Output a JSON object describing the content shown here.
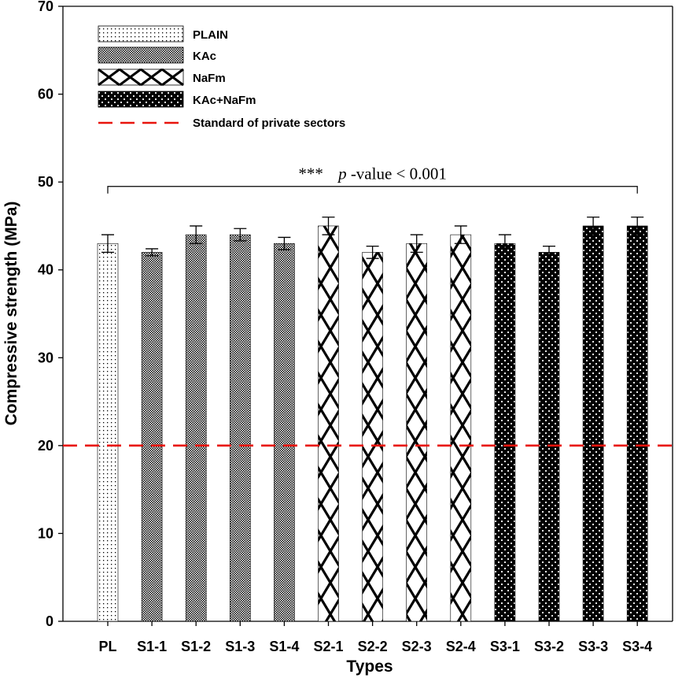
{
  "chart_data": {
    "type": "bar",
    "title": "",
    "xlabel": "Types",
    "ylabel": "Compressive strength (MPa)",
    "ylim": [
      0,
      70
    ],
    "yticks": [
      "0",
      "10",
      "20",
      "30",
      "40",
      "50",
      "60",
      "70"
    ],
    "grid": false,
    "categories": [
      "PL",
      "S1-1",
      "S1-2",
      "S1-3",
      "S1-4",
      "S2-1",
      "S2-2",
      "S2-3",
      "S2-4",
      "S3-1",
      "S3-2",
      "S3-3",
      "S3-4"
    ],
    "values": [
      43,
      42,
      44,
      44,
      43,
      45,
      42,
      43,
      44,
      43,
      42,
      45,
      45
    ],
    "errors": [
      1.0,
      0.4,
      1.0,
      0.7,
      0.7,
      1.0,
      0.7,
      1.0,
      1.0,
      1.0,
      0.7,
      1.0,
      1.0
    ],
    "groups": [
      "PLAIN",
      "KAc",
      "KAc",
      "KAc",
      "KAc",
      "NaFm",
      "NaFm",
      "NaFm",
      "NaFm",
      "KAc+NaFm",
      "KAc+NaFm",
      "KAc+NaFm",
      "KAc+NaFm"
    ],
    "legend": {
      "placement": "top-left",
      "entries": [
        "PLAIN",
        "KAc",
        "NaFm",
        "KAc+NaFm",
        "Standard of private sectors"
      ]
    },
    "reference_line": {
      "value": 20,
      "label": "Standard of private sectors",
      "color": "#e8140c"
    },
    "annotation": {
      "stars": "***",
      "p_italic": "p",
      "p_rest": "-value < 0.001",
      "bracket_value": 49.5
    }
  }
}
